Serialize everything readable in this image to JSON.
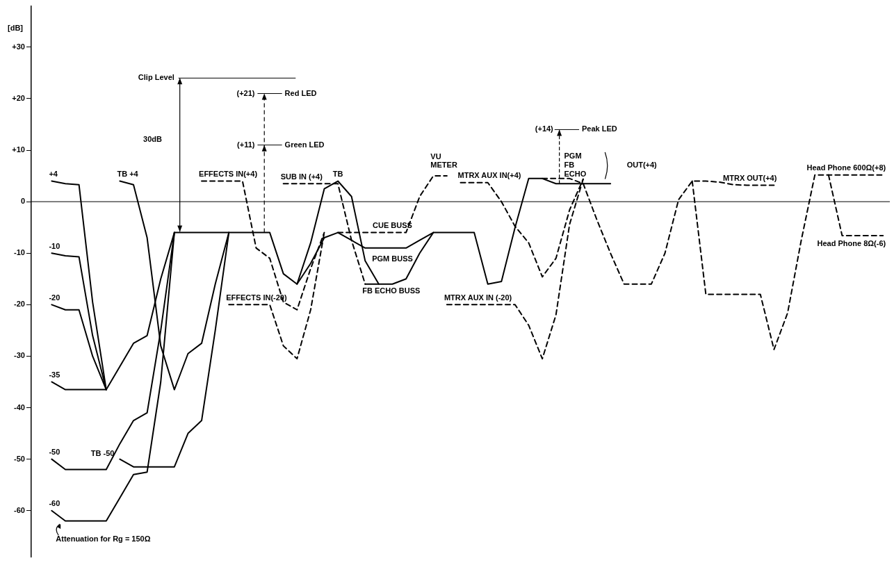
{
  "chart_data": {
    "type": "line",
    "ylabel": "[dB]",
    "ylim": [
      -69,
      38
    ],
    "yticks": [
      {
        "value": 30,
        "label": "+30"
      },
      {
        "value": 20,
        "label": "+20"
      },
      {
        "value": 10,
        "label": "+10"
      },
      0,
      -10,
      -20,
      -30,
      -40,
      -50,
      -60
    ],
    "tick_labels": "y",
    "grid": false,
    "legend": false,
    "marker": "none",
    "categories": [
      null,
      null,
      null,
      null,
      null,
      null,
      null,
      null,
      null,
      null,
      null,
      null,
      null,
      null,
      null,
      null,
      null,
      null,
      null,
      null,
      null,
      null,
      null,
      null,
      null,
      null,
      null,
      null,
      null,
      null,
      null,
      null,
      null,
      null,
      null,
      null,
      null,
      null,
      null,
      null,
      null,
      null,
      null,
      null,
      null,
      null,
      null,
      null,
      null,
      null,
      null,
      null,
      null,
      null,
      null,
      null,
      null,
      null,
      null,
      null,
      null,
      null,
      null
    ],
    "ref_lines": [
      {
        "axis": "y",
        "value": 0,
        "color": "#000000",
        "line_style": "solid"
      }
    ],
    "series": [
      {
        "name": "+4",
        "color": "#000000",
        "line_style": "solid",
        "values": [
          null,
          4,
          3.5,
          3.3,
          -19.5,
          -36.5,
          null,
          null,
          null,
          null,
          null,
          null,
          null,
          null,
          null,
          null,
          null,
          null,
          null,
          null,
          null,
          null,
          null,
          null,
          null,
          null,
          null,
          null,
          null,
          null,
          null,
          null,
          null,
          null,
          null,
          null,
          null,
          null,
          null,
          null,
          null,
          null,
          null,
          null,
          null,
          null,
          null,
          null,
          null,
          null,
          null,
          null,
          null,
          null,
          null,
          null,
          null,
          null,
          null,
          null,
          null,
          null,
          null
        ]
      },
      {
        "name": "-10",
        "color": "#000000",
        "line_style": "solid",
        "values": [
          null,
          -10,
          -10.5,
          -10.7,
          -26,
          -36.5,
          null,
          null,
          null,
          null,
          null,
          null,
          null,
          null,
          null,
          null,
          null,
          null,
          null,
          null,
          null,
          null,
          null,
          null,
          null,
          null,
          null,
          null,
          null,
          null,
          null,
          null,
          null,
          null,
          null,
          null,
          null,
          null,
          null,
          null,
          null,
          null,
          null,
          null,
          null,
          null,
          null,
          null,
          null,
          null,
          null,
          null,
          null,
          null,
          null,
          null,
          null,
          null,
          null,
          null,
          null,
          null,
          null
        ]
      },
      {
        "name": "-20",
        "color": "#000000",
        "line_style": "solid",
        "values": [
          null,
          -20,
          -21,
          -21,
          -30,
          -36.5,
          null,
          null,
          null,
          null,
          null,
          null,
          null,
          null,
          null,
          null,
          null,
          null,
          null,
          null,
          null,
          null,
          null,
          null,
          null,
          null,
          null,
          null,
          null,
          null,
          null,
          null,
          null,
          null,
          null,
          null,
          null,
          null,
          null,
          null,
          null,
          null,
          null,
          null,
          null,
          null,
          null,
          null,
          null,
          null,
          null,
          null,
          null,
          null,
          null,
          null,
          null,
          null,
          null,
          null,
          null,
          null,
          null
        ]
      },
      {
        "name": "-35",
        "color": "#000000",
        "line_style": "solid",
        "values": [
          null,
          -35,
          -36.5,
          -36.5,
          -36.5,
          -36.5,
          -32,
          -27.5,
          -26,
          -15,
          -6,
          null,
          null,
          null,
          null,
          null,
          null,
          null,
          null,
          null,
          null,
          null,
          null,
          null,
          null,
          null,
          null,
          null,
          null,
          null,
          null,
          null,
          null,
          null,
          null,
          null,
          null,
          null,
          null,
          null,
          null,
          null,
          null,
          null,
          null,
          null,
          null,
          null,
          null,
          null,
          null,
          null,
          null,
          null,
          null,
          null,
          null,
          null,
          null,
          null,
          null,
          null,
          null
        ]
      },
      {
        "name": "-50",
        "color": "#000000",
        "line_style": "solid",
        "values": [
          null,
          -50,
          -52,
          -52,
          -52,
          -52,
          -47,
          -42.5,
          -41,
          -25,
          -6,
          null,
          null,
          null,
          null,
          null,
          null,
          null,
          null,
          null,
          null,
          null,
          null,
          null,
          null,
          null,
          null,
          null,
          null,
          null,
          null,
          null,
          null,
          null,
          null,
          null,
          null,
          null,
          null,
          null,
          null,
          null,
          null,
          null,
          null,
          null,
          null,
          null,
          null,
          null,
          null,
          null,
          null,
          null,
          null,
          null,
          null,
          null,
          null,
          null,
          null,
          null,
          null
        ]
      },
      {
        "name": "-60",
        "color": "#000000",
        "line_style": "solid",
        "values": [
          null,
          -60,
          -62,
          -62,
          -62,
          -62,
          -57.5,
          -53,
          -52.5,
          -35,
          -6,
          -6,
          -6,
          -6,
          -6,
          -6,
          -6,
          -6,
          -14,
          -16,
          -12,
          -7,
          -6,
          -7.5,
          -9,
          -9,
          -9,
          -9,
          -7.5,
          -6,
          -6,
          -6,
          -6,
          -16,
          -15.5,
          -5,
          4.5,
          4.5,
          3.5,
          3.5,
          3.5,
          3.5,
          3.5,
          null,
          null,
          null,
          null,
          null,
          null,
          null,
          null,
          null,
          null,
          null,
          null,
          null,
          null,
          null,
          null,
          null,
          null,
          null,
          null
        ]
      },
      {
        "name": "TB +4",
        "color": "#000000",
        "line_style": "solid",
        "values": [
          null,
          null,
          null,
          null,
          null,
          null,
          4,
          3.3,
          -7,
          -28,
          -36.5,
          -29.5,
          -27.5,
          -16,
          -6,
          null,
          null,
          null,
          null,
          null,
          null,
          null,
          null,
          null,
          null,
          null,
          null,
          null,
          null,
          null,
          null,
          null,
          null,
          null,
          null,
          null,
          null,
          null,
          null,
          null,
          null,
          null,
          null,
          null,
          null,
          null,
          null,
          null,
          null,
          null,
          null,
          null,
          null,
          null,
          null,
          null,
          null,
          null,
          null,
          null,
          null,
          null,
          null
        ]
      },
      {
        "name": "TB -50",
        "color": "#000000",
        "line_style": "solid",
        "values": [
          null,
          null,
          null,
          null,
          null,
          null,
          -50,
          -51.5,
          -51.5,
          -51.5,
          -51.5,
          -45,
          -42.5,
          -25,
          -6,
          null,
          null,
          null,
          null,
          null,
          null,
          null,
          null,
          null,
          null,
          null,
          null,
          null,
          null,
          null,
          null,
          null,
          null,
          null,
          null,
          null,
          null,
          null,
          null,
          null,
          null,
          null,
          null,
          null,
          null,
          null,
          null,
          null,
          null,
          null,
          null,
          null,
          null,
          null,
          null,
          null,
          null,
          null,
          null,
          null,
          null,
          null,
          null
        ]
      },
      {
        "name": "EFFECTS IN(+4)",
        "color": "#000000",
        "line_style": "dashed",
        "values": [
          null,
          null,
          null,
          null,
          null,
          null,
          null,
          null,
          null,
          null,
          null,
          null,
          4,
          4,
          4,
          4,
          -9,
          -11,
          -19.5,
          -21,
          -13,
          -6,
          null,
          null,
          null,
          null,
          null,
          null,
          null,
          null,
          null,
          null,
          null,
          null,
          null,
          null,
          null,
          null,
          null,
          null,
          null,
          null,
          null,
          null,
          null,
          null,
          null,
          null,
          null,
          null,
          null,
          null,
          null,
          null,
          null,
          null,
          null,
          null,
          null,
          null,
          null,
          null,
          null
        ]
      },
      {
        "name": "EFFECTS IN(-20)",
        "color": "#000000",
        "line_style": "dashed",
        "values": [
          null,
          null,
          null,
          null,
          null,
          null,
          null,
          null,
          null,
          null,
          null,
          null,
          null,
          null,
          -20,
          -20,
          -20,
          -20,
          -28,
          -30.5,
          -21,
          -6,
          null,
          null,
          null,
          null,
          null,
          null,
          null,
          null,
          null,
          null,
          null,
          null,
          null,
          null,
          null,
          null,
          null,
          null,
          null,
          null,
          null,
          null,
          null,
          null,
          null,
          null,
          null,
          null,
          null,
          null,
          null,
          null,
          null,
          null,
          null,
          null,
          null,
          null,
          null,
          null,
          null
        ]
      },
      {
        "name": "SUB IN (+4)",
        "color": "#000000",
        "line_style": "dashed",
        "values": [
          null,
          null,
          null,
          null,
          null,
          null,
          null,
          null,
          null,
          null,
          null,
          null,
          null,
          null,
          null,
          null,
          null,
          null,
          3.5,
          3.5,
          3.5,
          3.5,
          3.5,
          -7.5,
          -16,
          null,
          null,
          null,
          null,
          null,
          null,
          null,
          null,
          null,
          null,
          null,
          null,
          null,
          null,
          null,
          null,
          null,
          null,
          null,
          null,
          null,
          null,
          null,
          null,
          null,
          null,
          null,
          null,
          null,
          null,
          null,
          null,
          null,
          null,
          null,
          null,
          null,
          null
        ]
      },
      {
        "name": "TB",
        "color": "#000000",
        "line_style": "solid",
        "values": [
          null,
          null,
          null,
          null,
          null,
          null,
          null,
          null,
          null,
          null,
          null,
          null,
          null,
          null,
          null,
          null,
          null,
          null,
          null,
          -16,
          -8,
          2.5,
          4,
          1,
          -11.5,
          -16,
          null,
          null,
          null,
          null,
          null,
          null,
          null,
          null,
          null,
          null,
          null,
          null,
          null,
          null,
          null,
          null,
          null,
          null,
          null,
          null,
          null,
          null,
          null,
          null,
          null,
          null,
          null,
          null,
          null,
          null,
          null,
          null,
          null,
          null,
          null,
          null,
          null
        ]
      },
      {
        "name": "FB ECHO BUSS",
        "color": "#000000",
        "line_style": "solid",
        "values": [
          null,
          null,
          null,
          null,
          null,
          null,
          null,
          null,
          null,
          null,
          null,
          null,
          null,
          null,
          null,
          null,
          null,
          null,
          null,
          null,
          null,
          null,
          null,
          null,
          -16,
          -16,
          -16,
          -15,
          -10,
          -6,
          null,
          null,
          null,
          null,
          null,
          null,
          null,
          null,
          null,
          null,
          null,
          null,
          null,
          null,
          null,
          null,
          null,
          null,
          null,
          null,
          null,
          null,
          null,
          null,
          null,
          null,
          null,
          null,
          null,
          null,
          null,
          null,
          null
        ]
      },
      {
        "name": "CUE BUSS",
        "color": "#000000",
        "line_style": "dashed",
        "values": [
          null,
          null,
          null,
          null,
          null,
          null,
          null,
          null,
          null,
          null,
          null,
          null,
          null,
          null,
          null,
          null,
          null,
          null,
          null,
          null,
          null,
          null,
          -6,
          -6,
          -6,
          -6,
          -6,
          -6,
          1,
          5,
          5,
          null,
          null,
          null,
          null,
          null,
          null,
          null,
          null,
          null,
          null,
          null,
          null,
          null,
          null,
          null,
          null,
          null,
          null,
          null,
          null,
          null,
          null,
          null,
          null,
          null,
          null,
          null,
          null,
          null,
          null,
          null,
          null
        ]
      },
      {
        "name": "MTRX AUX IN(+4)",
        "color": "#000000",
        "line_style": "dashed",
        "values": [
          null,
          null,
          null,
          null,
          null,
          null,
          null,
          null,
          null,
          null,
          null,
          null,
          null,
          null,
          null,
          null,
          null,
          null,
          null,
          null,
          null,
          null,
          null,
          null,
          null,
          null,
          null,
          null,
          null,
          null,
          null,
          3.7,
          3.7,
          3.7,
          0,
          -4.8,
          -8,
          -14.6,
          -11,
          -1.6,
          4.4,
          null,
          null,
          null,
          null,
          null,
          null,
          null,
          null,
          null,
          null,
          null,
          null,
          null,
          null,
          null,
          null,
          null,
          null,
          null,
          null,
          null,
          null
        ]
      },
      {
        "name": "MTRX AUX IN (-20)",
        "color": "#000000",
        "line_style": "dashed",
        "values": [
          null,
          null,
          null,
          null,
          null,
          null,
          null,
          null,
          null,
          null,
          null,
          null,
          null,
          null,
          null,
          null,
          null,
          null,
          null,
          null,
          null,
          null,
          null,
          null,
          null,
          null,
          null,
          null,
          null,
          null,
          -20,
          -20,
          -20,
          -20,
          -20,
          -20,
          -24,
          -30.5,
          -22,
          -4.4,
          4.4,
          null,
          null,
          null,
          null,
          null,
          null,
          null,
          null,
          null,
          null,
          null,
          null,
          null,
          null,
          null,
          null,
          null,
          null,
          null,
          null,
          null,
          null
        ]
      },
      {
        "name": "MTRX OUT(+4)",
        "color": "#000000",
        "line_style": "dashed",
        "values": [
          null,
          null,
          null,
          null,
          null,
          null,
          null,
          null,
          null,
          null,
          null,
          null,
          null,
          null,
          null,
          null,
          null,
          null,
          null,
          null,
          null,
          null,
          null,
          null,
          null,
          null,
          null,
          null,
          null,
          null,
          null,
          null,
          null,
          null,
          null,
          null,
          null,
          4.5,
          4.5,
          4.5,
          3.5,
          -3.5,
          -10,
          -16,
          -16,
          -16,
          -10,
          0.4,
          4,
          4,
          3.8,
          3.3,
          3.2,
          3.2,
          3.2,
          null,
          null,
          null,
          null,
          null,
          null,
          null,
          null
        ]
      },
      {
        "name": "Head Phone 600Ω(+8)",
        "color": "#000000",
        "line_style": "dashed",
        "values": [
          null,
          null,
          null,
          null,
          null,
          null,
          null,
          null,
          null,
          null,
          null,
          null,
          null,
          null,
          null,
          null,
          null,
          null,
          null,
          null,
          null,
          null,
          null,
          null,
          null,
          null,
          null,
          null,
          null,
          null,
          null,
          null,
          null,
          null,
          null,
          null,
          null,
          null,
          null,
          null,
          null,
          null,
          null,
          null,
          null,
          null,
          null,
          null,
          4,
          -18,
          -18,
          -18,
          -18,
          -18,
          -28.7,
          -21.6,
          -7.5,
          5.2,
          5.2,
          5.2,
          5.2,
          5.2,
          5.2
        ]
      },
      {
        "name": "Head Phone 8Ω(-6)",
        "color": "#000000",
        "line_style": "dashed",
        "values": [
          null,
          null,
          null,
          null,
          null,
          null,
          null,
          null,
          null,
          null,
          null,
          null,
          null,
          null,
          null,
          null,
          null,
          null,
          null,
          null,
          null,
          null,
          null,
          null,
          null,
          null,
          null,
          null,
          null,
          null,
          null,
          null,
          null,
          null,
          null,
          null,
          null,
          null,
          null,
          null,
          null,
          null,
          null,
          null,
          null,
          null,
          null,
          null,
          null,
          null,
          null,
          null,
          null,
          null,
          null,
          null,
          null,
          null,
          5.2,
          -6.6,
          -6.6,
          -6.6,
          -6.6
        ]
      }
    ],
    "annotations": [
      "Clip Level",
      "30dB",
      "(+21)",
      "Red LED",
      "(+11)",
      "Green LED",
      "(+14)",
      "Peak LED",
      "VU METER",
      "PGM",
      "FB",
      "ECHO",
      "OUT(+4)",
      "Attenuation for Rg = 150Ω",
      "PGM BUSS"
    ]
  }
}
